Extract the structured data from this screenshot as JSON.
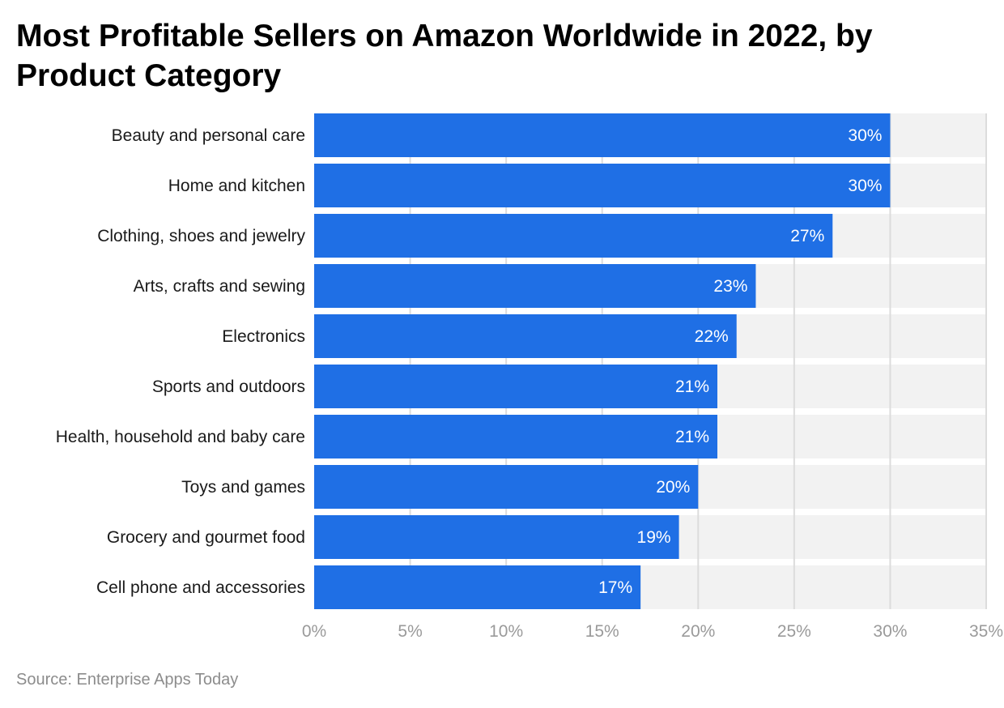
{
  "chart_data": {
    "type": "bar",
    "orientation": "horizontal",
    "title": "Most Profitable Sellers on Amazon Worldwide in 2022, by Product Category",
    "categories": [
      "Beauty and personal care",
      "Home and kitchen",
      "Clothing, shoes and jewelry",
      "Arts, crafts and sewing",
      "Electronics",
      "Sports and outdoors",
      "Health, household and baby care",
      "Toys and games",
      "Grocery and gourmet food",
      "Cell phone and accessories"
    ],
    "values": [
      30,
      30,
      27,
      23,
      22,
      21,
      21,
      20,
      19,
      17
    ],
    "data_labels": [
      "30%",
      "30%",
      "27%",
      "23%",
      "22%",
      "21%",
      "21%",
      "20%",
      "19%",
      "17%"
    ],
    "xlim": [
      0,
      35
    ],
    "xticks": [
      0,
      5,
      10,
      15,
      20,
      25,
      30,
      35
    ],
    "xtick_labels": [
      "0%",
      "5%",
      "10%",
      "15%",
      "20%",
      "25%",
      "30%",
      "35%"
    ],
    "grid": true,
    "colors": {
      "bar": "#1f6fe5",
      "band": "#f2f2f2",
      "grid": "#dcdcdc"
    }
  },
  "source": "Source: Enterprise Apps Today"
}
